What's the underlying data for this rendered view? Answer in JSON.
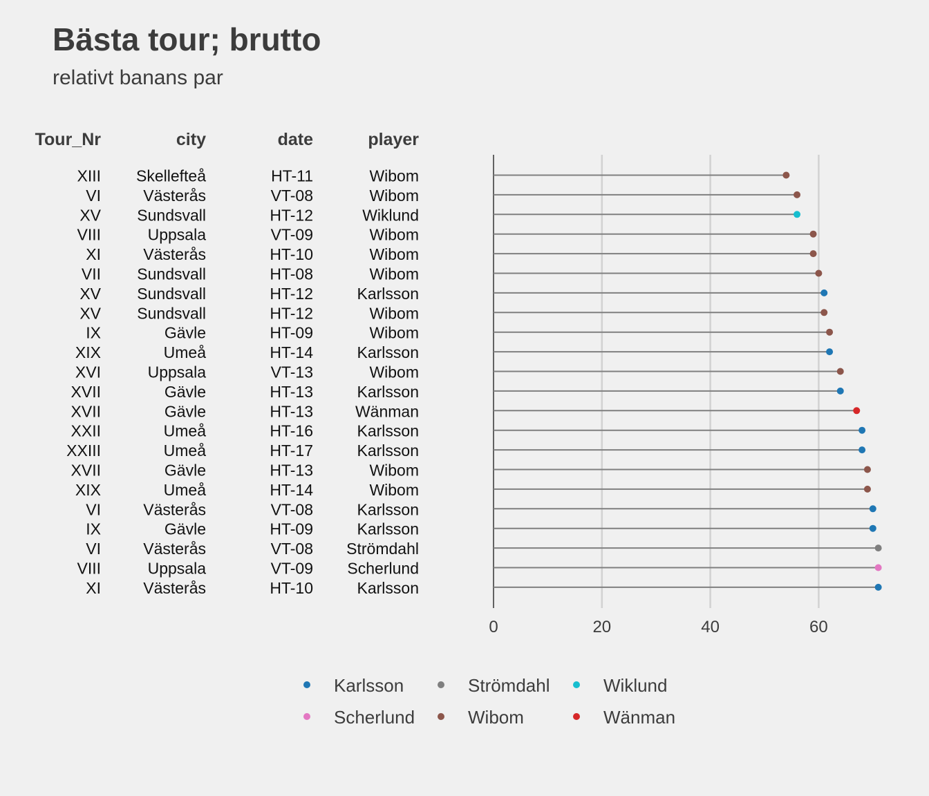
{
  "title": "Bästa tour; brutto",
  "subtitle": "relativt banans par",
  "chart_data": {
    "type": "lollipop",
    "title": "Bästa tour; brutto",
    "subtitle": "relativt banans par",
    "table_columns": [
      "Tour_Nr",
      "city",
      "date",
      "player"
    ],
    "rows": [
      {
        "tour": "XIII",
        "city": "Skellefteå",
        "date": "HT-11",
        "player": "Wibom",
        "value": 54
      },
      {
        "tour": "VI",
        "city": "Västerås",
        "date": "VT-08",
        "player": "Wibom",
        "value": 56
      },
      {
        "tour": "XV",
        "city": "Sundsvall",
        "date": "HT-12",
        "player": "Wiklund",
        "value": 56
      },
      {
        "tour": "VIII",
        "city": "Uppsala",
        "date": "VT-09",
        "player": "Wibom",
        "value": 59
      },
      {
        "tour": "XI",
        "city": "Västerås",
        "date": "HT-10",
        "player": "Wibom",
        "value": 59
      },
      {
        "tour": "VII",
        "city": "Sundsvall",
        "date": "HT-08",
        "player": "Wibom",
        "value": 60
      },
      {
        "tour": "XV",
        "city": "Sundsvall",
        "date": "HT-12",
        "player": "Karlsson",
        "value": 61
      },
      {
        "tour": "XV",
        "city": "Sundsvall",
        "date": "HT-12",
        "player": "Wibom",
        "value": 61
      },
      {
        "tour": "IX",
        "city": "Gävle",
        "date": "HT-09",
        "player": "Wibom",
        "value": 62
      },
      {
        "tour": "XIX",
        "city": "Umeå",
        "date": "HT-14",
        "player": "Karlsson",
        "value": 62
      },
      {
        "tour": "XVI",
        "city": "Uppsala",
        "date": "VT-13",
        "player": "Wibom",
        "value": 64
      },
      {
        "tour": "XVII",
        "city": "Gävle",
        "date": "HT-13",
        "player": "Karlsson",
        "value": 64
      },
      {
        "tour": "XVII",
        "city": "Gävle",
        "date": "HT-13",
        "player": "Wänman",
        "value": 67
      },
      {
        "tour": "XXII",
        "city": "Umeå",
        "date": "HT-16",
        "player": "Karlsson",
        "value": 68
      },
      {
        "tour": "XXIII",
        "city": "Umeå",
        "date": "HT-17",
        "player": "Karlsson",
        "value": 68
      },
      {
        "tour": "XVII",
        "city": "Gävle",
        "date": "HT-13",
        "player": "Wibom",
        "value": 69
      },
      {
        "tour": "XIX",
        "city": "Umeå",
        "date": "HT-14",
        "player": "Wibom",
        "value": 69
      },
      {
        "tour": "VI",
        "city": "Västerås",
        "date": "VT-08",
        "player": "Karlsson",
        "value": 70
      },
      {
        "tour": "IX",
        "city": "Gävle",
        "date": "HT-09",
        "player": "Karlsson",
        "value": 70
      },
      {
        "tour": "VI",
        "city": "Västerås",
        "date": "VT-08",
        "player": "Strömdahl",
        "value": 71
      },
      {
        "tour": "VIII",
        "city": "Uppsala",
        "date": "VT-09",
        "player": "Scherlund",
        "value": 71
      },
      {
        "tour": "XI",
        "city": "Västerås",
        "date": "HT-10",
        "player": "Karlsson",
        "value": 71
      }
    ],
    "x_ticks": [
      0,
      20,
      40,
      60
    ],
    "xlim": [
      0,
      75
    ],
    "grid": true,
    "legend_position": "bottom",
    "legend": [
      {
        "name": "Karlsson",
        "color": "#1f77b4"
      },
      {
        "name": "Strömdahl",
        "color": "#7f7f7f"
      },
      {
        "name": "Wiklund",
        "color": "#17becf"
      },
      {
        "name": "Scherlund",
        "color": "#e377c2"
      },
      {
        "name": "Wibom",
        "color": "#8c564b"
      },
      {
        "name": "Wänman",
        "color": "#d62728"
      }
    ],
    "stem_color": "#7f7f7f"
  }
}
